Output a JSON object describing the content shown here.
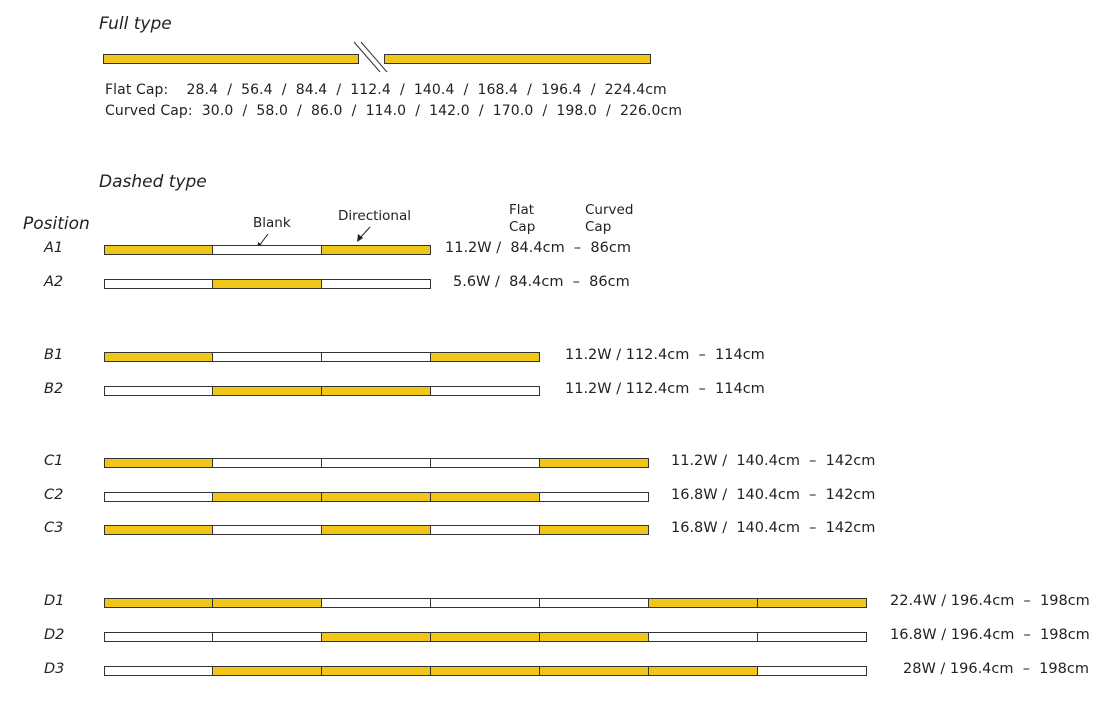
{
  "full_type": {
    "heading": "Full type",
    "flat_cap": "Flat Cap:    28.4  /  56.4  /  84.4  /  112.4  /  140.4  /  168.4  /  196.4  /  224.4cm",
    "curved_cap": "Curved Cap:  30.0  /  58.0  /  86.0  /  114.0  /  142.0  /  170.0  /  198.0  /  226.0cm"
  },
  "dashed_type": {
    "heading": "Dashed type",
    "position_header": "Position",
    "blank_label": "Blank",
    "directional_label": "Directional",
    "flat_cap_header": "Flat\nCap",
    "curved_cap_header": "Curved\nCap",
    "rows": [
      {
        "label": "A1",
        "pattern": [
          1,
          0,
          1
        ],
        "spec": "11.2W /  84.4cm  –  86cm"
      },
      {
        "label": "A2",
        "pattern": [
          0,
          1,
          0
        ],
        "spec": "5.6W /  84.4cm  –  86cm"
      },
      {
        "label": "B1",
        "pattern": [
          1,
          0,
          0,
          1
        ],
        "spec": "11.2W / 112.4cm  –  114cm"
      },
      {
        "label": "B2",
        "pattern": [
          0,
          1,
          1,
          0
        ],
        "spec": "11.2W / 112.4cm  –  114cm"
      },
      {
        "label": "C1",
        "pattern": [
          1,
          0,
          0,
          0,
          1
        ],
        "spec": "11.2W /  140.4cm  –  142cm"
      },
      {
        "label": "C2",
        "pattern": [
          0,
          1,
          1,
          1,
          0
        ],
        "spec": "16.8W /  140.4cm  –  142cm"
      },
      {
        "label": "C3",
        "pattern": [
          1,
          0,
          1,
          0,
          1
        ],
        "spec": "16.8W /  140.4cm  –  142cm"
      },
      {
        "label": "D1",
        "pattern": [
          1,
          1,
          0,
          0,
          0,
          1,
          1
        ],
        "spec": "22.4W / 196.4cm  –  198cm"
      },
      {
        "label": "D2",
        "pattern": [
          0,
          0,
          1,
          1,
          1,
          0,
          0
        ],
        "spec": "16.8W / 196.4cm  –  198cm"
      },
      {
        "label": "D3",
        "pattern": [
          0,
          1,
          1,
          1,
          1,
          1,
          0
        ],
        "spec": "28W / 196.4cm  –  198cm"
      }
    ]
  },
  "colors": {
    "lit": "#f2c618",
    "blank": "#ffffff",
    "outline": "#333333"
  }
}
